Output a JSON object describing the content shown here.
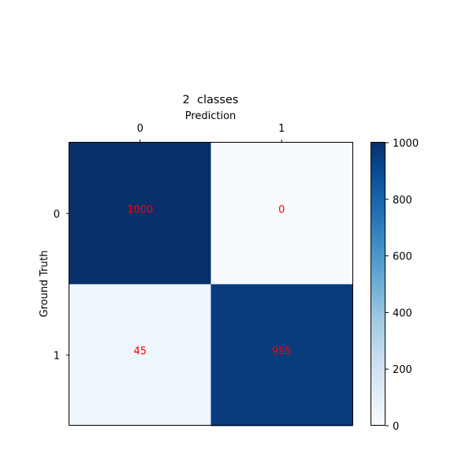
{
  "chart_data": {
    "type": "heatmap",
    "title": "2  classes",
    "xlabel": "Prediction",
    "ylabel": "Ground Truth",
    "x_categories": [
      "0",
      "1"
    ],
    "y_categories": [
      "0",
      "1"
    ],
    "values": [
      [
        1000,
        0
      ],
      [
        45,
        955
      ]
    ],
    "annotation_color": "#ff0000",
    "colormap": "Blues",
    "colorbar": {
      "range": [
        0,
        1000
      ],
      "ticks": [
        0,
        200,
        400,
        600,
        800,
        1000
      ]
    },
    "x_axis_position": "top",
    "grid": false
  }
}
